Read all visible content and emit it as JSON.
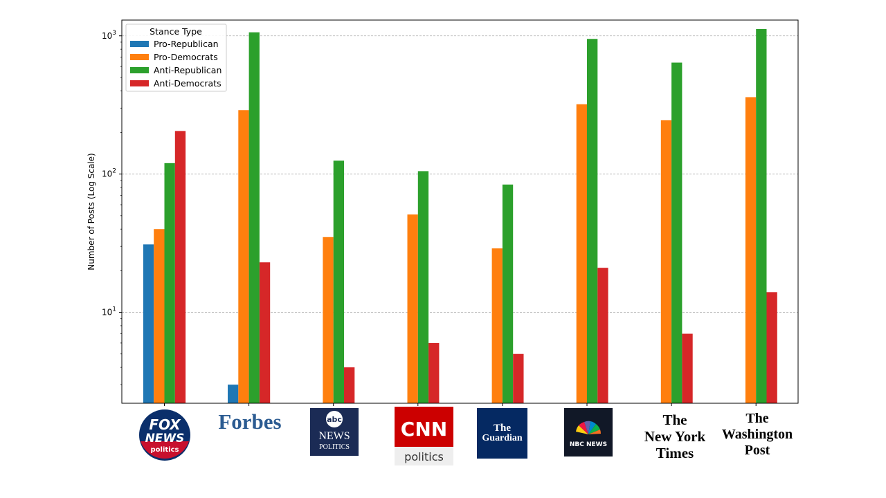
{
  "chart_data": {
    "type": "bar",
    "yscale": "log",
    "ylabel": "Number of Posts (Log Scale)",
    "ylim": [
      2.2,
      1300
    ],
    "yticks": [
      {
        "value": 10,
        "base": "10",
        "exp": "1"
      },
      {
        "value": 100,
        "base": "10",
        "exp": "2"
      },
      {
        "value": 1000,
        "base": "10",
        "exp": "3"
      }
    ],
    "grid": "y-major-dashed",
    "legend": {
      "title": "Stance Type",
      "placement": "top-left"
    },
    "categories": [
      "Fox News Politics",
      "Forbes",
      "ABC News Politics",
      "CNN Politics",
      "The Guardian",
      "NBC News",
      "The New York Times",
      "The Washington Post"
    ],
    "series": [
      {
        "name": "Pro-Republican",
        "color": "#1f77b4",
        "values": [
          31,
          3,
          null,
          null,
          null,
          null,
          null,
          null
        ]
      },
      {
        "name": "Pro-Democrats",
        "color": "#ff7f0e",
        "values": [
          40,
          290,
          35,
          51,
          29,
          320,
          245,
          360
        ]
      },
      {
        "name": "Anti-Republican",
        "color": "#2ca02c",
        "values": [
          120,
          1060,
          125,
          105,
          84,
          950,
          640,
          1120
        ]
      },
      {
        "name": "Anti-Democrats",
        "color": "#d62728",
        "values": [
          205,
          23,
          4,
          6,
          5,
          21,
          7,
          14
        ]
      }
    ]
  },
  "logos": {
    "fox": {
      "line1": "FOX",
      "line2": "NEWS",
      "line3": "politics"
    },
    "forbes": {
      "text": "Forbes"
    },
    "abc": {
      "badge": "abc",
      "line1": "NEWS",
      "line2": "POLITICS"
    },
    "cnn": {
      "top": "CNN",
      "bottom": "politics"
    },
    "guardian": {
      "line1": "The",
      "line2": "Guardian"
    },
    "nbc": {
      "text": "NBC NEWS"
    },
    "nyt": {
      "line1": "The",
      "line2": "New York",
      "line3": "Times"
    },
    "wapo": {
      "line1": "The",
      "line2": "Washington",
      "line3": "Post"
    }
  }
}
